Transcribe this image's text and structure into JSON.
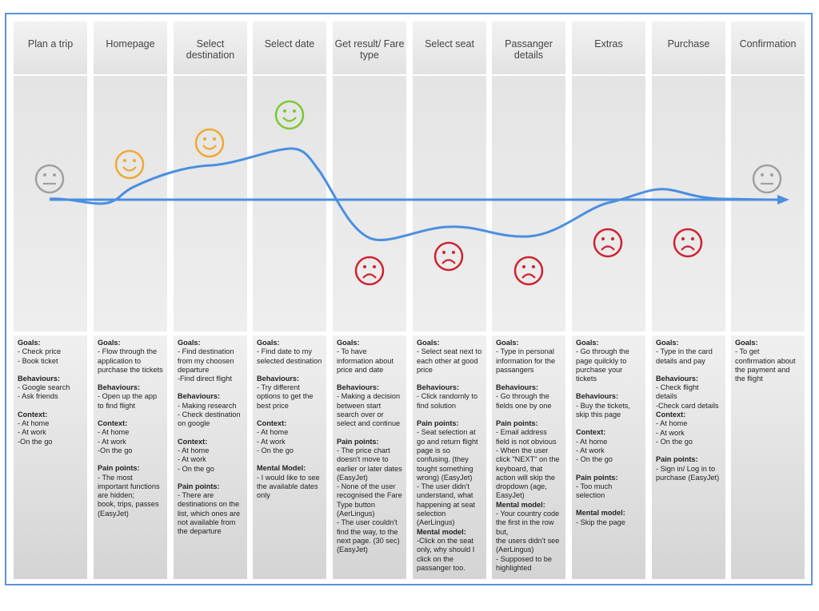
{
  "colors": {
    "frame": "#5b93d6",
    "curve": "#4a8fe0",
    "neutral": "#a0a0a0",
    "happy": "#f0a830",
    "very_happy": "#7cc832",
    "sad": "#d0222e"
  },
  "stages": [
    {
      "title": "Plan a trip",
      "mood": "neutral",
      "sections": [
        {
          "title": "Goals:",
          "lines": [
            "- Check price",
            "- Book ticket"
          ]
        },
        {
          "title": "Behaviours:",
          "lines": [
            "- Google search",
            "- Ask friends"
          ]
        },
        {
          "title": "Context:",
          "lines": [
            "- At home",
            "- At work",
            "-On the go"
          ]
        }
      ]
    },
    {
      "title": "Homepage",
      "mood": "happy",
      "sections": [
        {
          "title": "Goals:",
          "lines": [
            "- Flow through the application to purchase the tickets"
          ]
        },
        {
          "title": "Behaviours:",
          "lines": [
            "- Open up the app to find flight"
          ]
        },
        {
          "title": "Context:",
          "lines": [
            "- At home",
            "- At work",
            "-On the go"
          ]
        },
        {
          "title": "Pain points:",
          "lines": [
            "- The most important functions are hidden;",
            "book, trips, passes (EasyJet)"
          ]
        }
      ]
    },
    {
      "title": "Select destination",
      "mood": "happy",
      "sections": [
        {
          "title": "Goals:",
          "lines": [
            "- Find destination from my choosen departure",
            "-Find direct flight"
          ]
        },
        {
          "title": "Behaviours:",
          "lines": [
            "- Making research",
            "- Check destination on google"
          ]
        },
        {
          "title": "Context:",
          "lines": [
            "- At home",
            "- At work",
            "- On the go"
          ]
        },
        {
          "title": "Pain points:",
          "lines": [
            "- There are destinations on the list, which ones are not available from the departure"
          ]
        }
      ]
    },
    {
      "title": "Select date",
      "mood": "very_happy",
      "sections": [
        {
          "title": "Goals:",
          "lines": [
            "- Find date to my selected destination"
          ]
        },
        {
          "title": "Behaviours:",
          "lines": [
            "- Try different options to get the best price"
          ]
        },
        {
          "title": "Context:",
          "lines": [
            "- At home",
            "- At work",
            "- On the go"
          ]
        },
        {
          "title": "Mental Model:",
          "lines": [
            "- I would like to see the available dates only"
          ]
        }
      ]
    },
    {
      "title": "Get result/ Fare type",
      "mood": "sad",
      "sections": [
        {
          "title": "Goals:",
          "lines": [
            "- To have information about price and date"
          ]
        },
        {
          "title": "Behaviours:",
          "lines": [
            "- Making a decision between start search over or select and continue"
          ]
        },
        {
          "title": "Pain points:",
          "lines": [
            "- The price chart doesn't move to earlier or later dates (EasyJet)",
            "- None of the user recognised the Fare Type button (AerLingus)",
            "- The user couldn't find the way, to the next page. (30 sec) (EasyJet)"
          ]
        }
      ]
    },
    {
      "title": "Select seat",
      "mood": "sad",
      "sections": [
        {
          "title": "Goals:",
          "lines": [
            "- Select seat next to each other at good price"
          ]
        },
        {
          "title": "Behaviours:",
          "lines": [
            "- Click randomly to find solution"
          ]
        },
        {
          "title": "Pain points:",
          "lines": [
            "- Seat selection at go and return flight page is so confusing. (they tought something wrong) (EasyJet)",
            "- The user didn't understand, what happening at seat selection (AerLingus)"
          ],
          "tight": true
        },
        {
          "title": "Mental model:",
          "lines": [
            "-Click on the seat only, why should I click on the passanger too."
          ]
        }
      ]
    },
    {
      "title": "Passanger details",
      "mood": "sad",
      "sections": [
        {
          "title": "Goals:",
          "lines": [
            "- Type in personal information for the passangers"
          ]
        },
        {
          "title": "Behaviours:",
          "lines": [
            "- Go through the fields one by one"
          ]
        },
        {
          "title": "Pain points:",
          "lines": [
            "- Email address field is not obvious",
            "- When the user click \"NEXT\" on the keyboard, that action will skip the dropdown (age, EasyJet)"
          ],
          "tight": true
        },
        {
          "title": "Mental model:",
          "lines": [
            "- Your country code the first in the row but,",
            "the users didn't see (AerLingus)",
            "- Supposed to be highlighted"
          ]
        }
      ]
    },
    {
      "title": "Extras",
      "mood": "sad",
      "sections": [
        {
          "title": "Goals:",
          "lines": [
            "- Go through the page quilckly to purchase your tickets"
          ]
        },
        {
          "title": "Behaviours:",
          "lines": [
            "- Buy the tickets, skip this page"
          ]
        },
        {
          "title": "Context:",
          "lines": [
            "- At home",
            "- At work",
            "- On the go"
          ]
        },
        {
          "title": "Pain points:",
          "lines": [
            "- Too much selection"
          ]
        },
        {
          "title": "Mental model:",
          "lines": [
            "- Skip the page"
          ]
        }
      ]
    },
    {
      "title": "Purchase",
      "mood": "sad",
      "sections": [
        {
          "title": "Goals:",
          "lines": [
            "- Type in the card details and pay"
          ]
        },
        {
          "title": "Behaviours:",
          "lines": [
            "- Check flight details",
            "-Check card details"
          ],
          "tight": true
        },
        {
          "title": "Context:",
          "lines": [
            "- At home",
            "- At work",
            "- On the go"
          ]
        },
        {
          "title": "Pain points:",
          "lines": [
            "- Sign in/ Log in to purchase (EasyJet)"
          ]
        }
      ]
    },
    {
      "title": "Confirmation",
      "mood": "neutral",
      "sections": [
        {
          "title": "Goals:",
          "lines": [
            "- To get confirmation about the payment and the flight"
          ]
        }
      ]
    }
  ]
}
